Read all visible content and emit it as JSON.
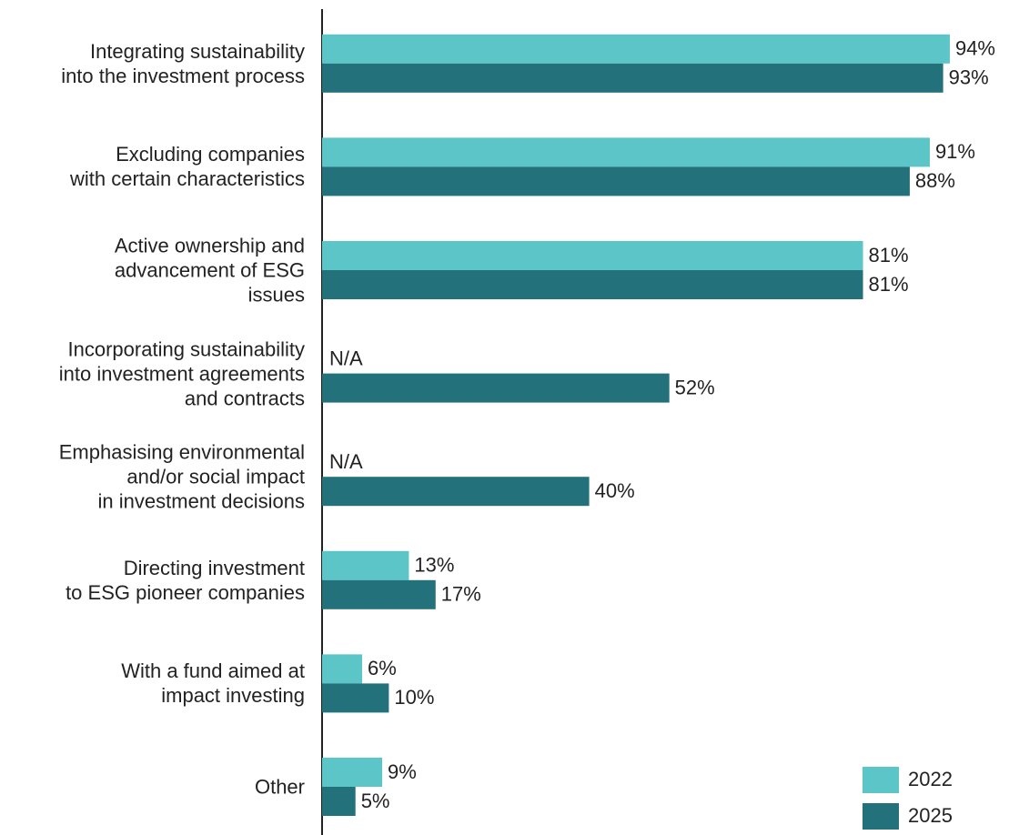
{
  "chart_data": {
    "type": "bar",
    "orientation": "horizontal",
    "categories": [
      "Integrating sustainability\ninto the investment process",
      "Excluding companies\nwith certain characteristics",
      "Active ownership and\nadvancement of ESG\nissues",
      "Incorporating sustainability\ninto investment agreements\nand contracts",
      "Emphasising environmental\nand/or social impact\nin investment decisions",
      "Directing investment\nto ESG pioneer companies",
      "With a fund aimed at\nimpact investing",
      "Other"
    ],
    "series": [
      {
        "name": "2022",
        "color": "#5bc5c8",
        "values": [
          94,
          91,
          81,
          null,
          null,
          13,
          6,
          9
        ],
        "value_labels": [
          "94%",
          "91%",
          "81%",
          "N/A",
          "N/A",
          "13%",
          "6%",
          "9%"
        ]
      },
      {
        "name": "2025",
        "color": "#23717a",
        "values": [
          93,
          88,
          81,
          52,
          40,
          17,
          10,
          5
        ],
        "value_labels": [
          "93%",
          "88%",
          "81%",
          "52%",
          "40%",
          "17%",
          "10%",
          "5%"
        ]
      }
    ],
    "xlim": [
      0,
      100
    ],
    "legend": "lower right"
  }
}
